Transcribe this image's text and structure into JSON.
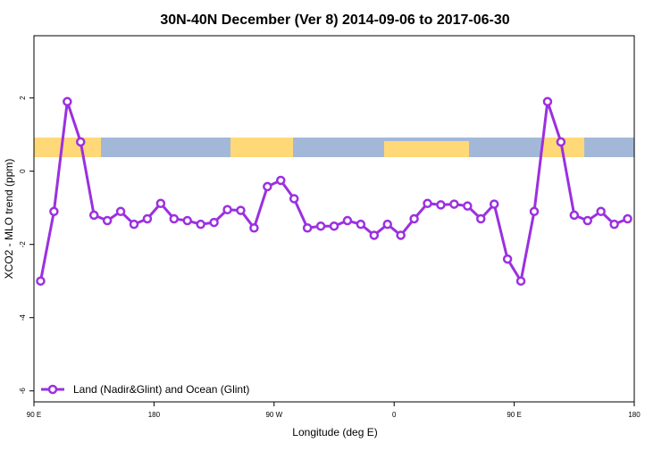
{
  "chart_data": {
    "type": "line",
    "title": "30N-40N December (Ver 8)   2014-09-06 to 2017-06-30",
    "xlabel": "Longitude (deg E)",
    "ylabel": "XCO2 - MLO trend (ppm)",
    "x": [
      95,
      105,
      115,
      125,
      135,
      145,
      155,
      165,
      175,
      185,
      195,
      205,
      215,
      225,
      235,
      245,
      255,
      265,
      275,
      285,
      295,
      305,
      315,
      325,
      335,
      345,
      355,
      365,
      375,
      385,
      395,
      405,
      415,
      425,
      435,
      445,
      455,
      465,
      475,
      485,
      495,
      505,
      515,
      525,
      535
    ],
    "series": [
      {
        "name": "Land (Nadir&Glint) and Ocean (Glint)",
        "color": "#9b30e0",
        "values": [
          -3.0,
          -1.1,
          1.9,
          0.8,
          -1.2,
          -1.35,
          -1.1,
          -1.45,
          -1.3,
          -0.88,
          -1.3,
          -1.35,
          -1.45,
          -1.4,
          -1.05,
          -1.07,
          -1.55,
          -0.42,
          -0.25,
          -0.75,
          -1.55,
          -1.5,
          -1.5,
          -1.35,
          -1.45,
          -1.75,
          -1.45,
          -1.75,
          -1.3,
          -0.88,
          -0.92,
          -0.9,
          -0.95,
          -1.3,
          -0.9,
          -2.4,
          -3.0,
          -1.1,
          1.9,
          0.8,
          -1.2,
          -1.35,
          -1.1,
          -1.45,
          -1.3
        ]
      }
    ],
    "xlim": [
      90,
      540
    ],
    "xticks": [
      {
        "value": 90,
        "label": "90 E"
      },
      180,
      {
        "value": 270,
        "label": "90 W"
      },
      {
        "value": 360,
        "label": "0"
      },
      {
        "value": 450,
        "label": "90 E"
      },
      {
        "value": 540,
        "label": "180"
      }
    ],
    "ylim": [
      -6.3,
      3.7
    ],
    "yticks": [
      2,
      0,
      -2,
      -4,
      -6
    ],
    "legend": "bottom-left"
  }
}
